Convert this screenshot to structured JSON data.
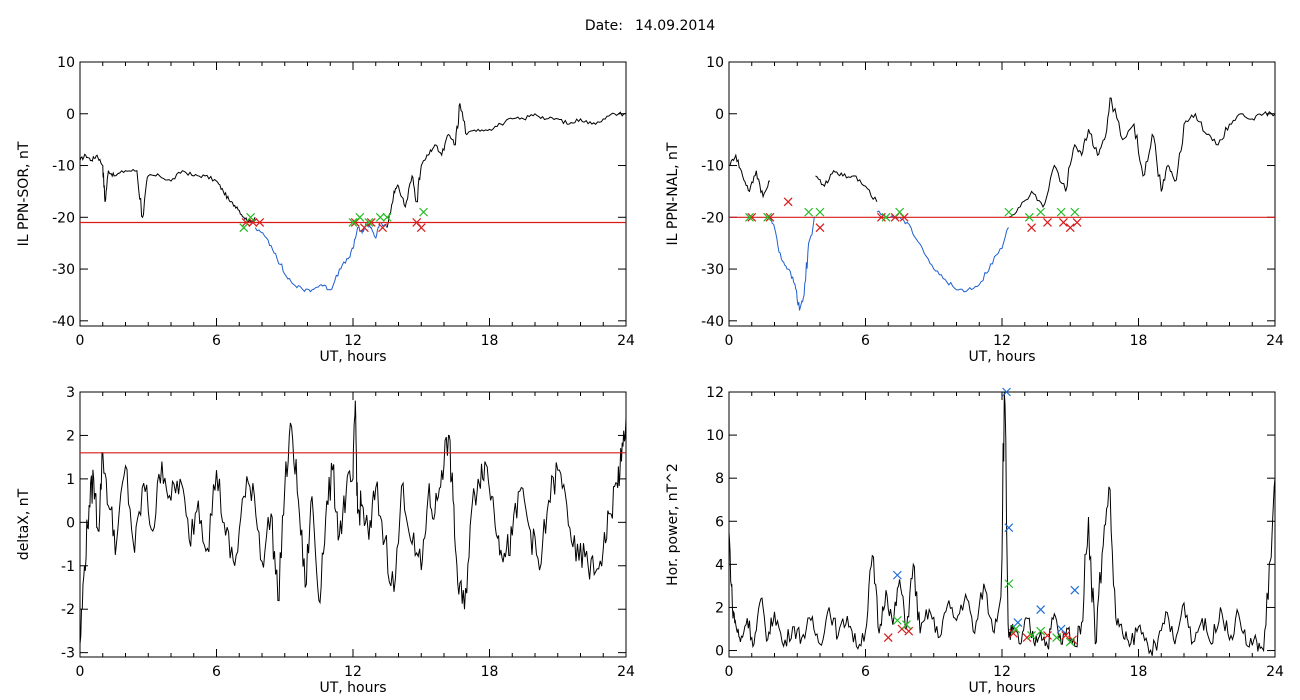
{
  "header": {
    "date_label": "Date:",
    "date_value": "14.09.2014"
  },
  "chart_data": [
    {
      "id": "sor",
      "type": "line",
      "xlabel": "UT, hours",
      "ylabel": "IL PPN-SOR, nT",
      "xlim": [
        0,
        24
      ],
      "ylim": [
        -41,
        10
      ],
      "xticks": [
        0,
        6,
        12,
        18,
        24
      ],
      "yticks": [
        10,
        0,
        -10,
        -20,
        -30,
        -40
      ],
      "threshold": -21,
      "colors": {
        "line": "#000000",
        "highlight": "#1f5fd0",
        "threshold": "#d81b1b",
        "red_marker": "#d81b1b",
        "green_marker": "#22bb22"
      },
      "series": [
        {
          "x": [
            0.0,
            0.25,
            0.5,
            0.75,
            1.0,
            1.1,
            1.25,
            1.5,
            2.0,
            2.5,
            2.75,
            3.0,
            3.5,
            4.0,
            4.5,
            5.0,
            5.5,
            6.0,
            6.3,
            6.6,
            6.9,
            7.2,
            7.5,
            7.7
          ],
          "y": [
            -9,
            -8,
            -9,
            -8,
            -10,
            -17,
            -11,
            -12,
            -11,
            -11,
            -20,
            -12,
            -12,
            -13,
            -11,
            -12,
            -12,
            -13,
            -15,
            -17,
            -18,
            -20,
            -21,
            -20
          ]
        },
        {
          "x": [
            7.7,
            8.2,
            8.6,
            9.0,
            9.4,
            9.8,
            10.2,
            10.6,
            11.0,
            11.4,
            11.8,
            12.0,
            12.2,
            12.4,
            12.6,
            12.8,
            13.0,
            13.2,
            13.5
          ],
          "y": [
            -22,
            -24,
            -27,
            -31,
            -33,
            -34,
            -34,
            -33,
            -34,
            -30,
            -28,
            -26,
            -22,
            -23,
            -21,
            -22,
            -24,
            -21,
            -22
          ]
        },
        {
          "x": [
            13.5,
            13.8,
            14.0,
            14.3,
            14.6,
            14.8,
            15.0,
            15.3,
            15.6,
            15.9,
            16.2,
            16.5,
            16.7,
            17.0,
            17.5,
            18.0,
            18.5,
            19.0,
            19.5,
            20.0,
            20.5,
            21.0,
            21.5,
            22.0,
            22.5,
            23.0,
            23.5,
            24.0
          ],
          "y": [
            -22,
            -15,
            -14,
            -18,
            -12,
            -17,
            -10,
            -8,
            -6,
            -8,
            -4,
            -6,
            2,
            -4,
            -3,
            -3,
            -2,
            -1,
            -1,
            0,
            -1,
            -1,
            -2,
            -1,
            -2,
            -1,
            0,
            0
          ]
        }
      ],
      "highlight_segments": [
        1
      ],
      "markers": {
        "red": {
          "x": [
            7.3,
            7.6,
            7.9,
            12.1,
            12.5,
            12.8,
            13.3,
            14.8,
            15.0
          ],
          "y": [
            -21,
            -21,
            -21,
            -21,
            -22,
            -21,
            -22,
            -21,
            -22
          ]
        },
        "green": {
          "x": [
            7.2,
            7.5,
            12.0,
            12.3,
            12.7,
            13.2,
            13.5,
            15.1
          ],
          "y": [
            -22,
            -20,
            -21,
            -20,
            -21,
            -20,
            -20,
            -19
          ]
        }
      }
    },
    {
      "id": "nal",
      "type": "line",
      "xlabel": "UT, hours",
      "ylabel": "IL PPN-NAL, nT",
      "xlim": [
        0,
        24
      ],
      "ylim": [
        -41,
        10
      ],
      "xticks": [
        0,
        6,
        12,
        18,
        24
      ],
      "yticks": [
        10,
        0,
        -10,
        -20,
        -30,
        -40
      ],
      "threshold": -20,
      "colors": {
        "line": "#000000",
        "highlight": "#1f5fd0",
        "threshold": "#d81b1b",
        "red_marker": "#d81b1b",
        "green_marker": "#22bb22"
      },
      "series": [
        {
          "x": [
            0.0,
            0.3,
            0.6,
            0.9,
            1.2,
            1.5,
            1.8
          ],
          "y": [
            -10,
            -8,
            -12,
            -15,
            -11,
            -16,
            -13
          ]
        },
        {
          "x": [
            1.8,
            2.0,
            2.3,
            2.6,
            2.9,
            3.1,
            3.3,
            3.5,
            3.8
          ],
          "y": [
            -20,
            -22,
            -28,
            -30,
            -33,
            -38,
            -35,
            -25,
            -20
          ]
        },
        {
          "x": [
            3.8,
            4.2,
            4.6,
            5.0,
            5.5,
            6.0,
            6.5
          ],
          "y": [
            -12,
            -14,
            -11,
            -12,
            -12,
            -14,
            -17
          ]
        },
        {
          "x": [
            6.5,
            7.0,
            7.5,
            8.0,
            8.5,
            9.0,
            9.5,
            10.0,
            10.5,
            11.0,
            11.5,
            12.0,
            12.3
          ],
          "y": [
            -19,
            -20,
            -20,
            -22,
            -26,
            -30,
            -32,
            -34,
            -34,
            -33,
            -29,
            -26,
            -22
          ]
        },
        {
          "x": [
            12.3,
            12.8,
            13.3,
            13.8,
            14.3,
            14.8,
            15.2,
            15.5,
            15.8,
            16.2,
            16.5,
            16.8,
            17.3,
            17.8,
            18.2,
            18.6,
            19.0,
            19.3,
            19.6,
            20.0,
            20.5,
            21.0,
            21.5,
            22.0,
            22.5,
            23.0,
            23.5,
            24.0
          ],
          "y": [
            -20,
            -18,
            -15,
            -18,
            -10,
            -15,
            -6,
            -8,
            -3,
            -8,
            -5,
            3,
            -5,
            -2,
            -12,
            -4,
            -15,
            -10,
            -13,
            -2,
            0,
            -4,
            -6,
            -2,
            0,
            -1,
            0,
            0
          ]
        }
      ],
      "highlight_segments": [
        1,
        3
      ],
      "markers": {
        "red": {
          "x": [
            1.0,
            1.8,
            2.6,
            4.0,
            6.7,
            7.3,
            7.7,
            13.3,
            14.0,
            14.7,
            15.0,
            15.3
          ],
          "y": [
            -20,
            -20,
            -17,
            -22,
            -20,
            -20,
            -20,
            -22,
            -21,
            -21,
            -22,
            -21
          ]
        },
        "green": {
          "x": [
            0.9,
            1.7,
            3.5,
            4.0,
            6.9,
            7.5,
            12.3,
            13.2,
            13.7,
            14.6,
            15.2
          ],
          "y": [
            -20,
            -20,
            -19,
            -19,
            -20,
            -19,
            -19,
            -20,
            -19,
            -19,
            -19
          ]
        }
      }
    },
    {
      "id": "deltax",
      "type": "line",
      "xlabel": "UT, hours",
      "ylabel": "deltaX, nT",
      "xlim": [
        0,
        24
      ],
      "ylim": [
        -3.1,
        3.0
      ],
      "xticks": [
        0,
        6,
        12,
        18,
        24
      ],
      "yticks": [
        3,
        2,
        1,
        0,
        -1,
        -2,
        -3
      ],
      "threshold": 1.6,
      "colors": {
        "line": "#000000",
        "threshold": "#d81b1b"
      },
      "series": [
        {
          "x": [
            0.0,
            0.2,
            0.4,
            0.6,
            0.8,
            1.0,
            1.3,
            1.6,
            2.0,
            2.4,
            2.8,
            3.2,
            3.6,
            4.0,
            4.4,
            4.8,
            5.2,
            5.6,
            6.0,
            6.4,
            6.8,
            7.2,
            7.6,
            8.0,
            8.4,
            8.7,
            9.0,
            9.3,
            9.6,
            9.9,
            10.2,
            10.5,
            10.8,
            11.1,
            11.4,
            11.7,
            12.0,
            12.1,
            12.2,
            12.4,
            12.7,
            13.0,
            13.4,
            13.8,
            14.2,
            14.6,
            15.0,
            15.3,
            15.6,
            15.9,
            16.2,
            16.4,
            16.6,
            16.9,
            17.2,
            17.5,
            17.8,
            18.1,
            18.4,
            18.7,
            19.0,
            19.4,
            19.8,
            20.2,
            20.6,
            21.0,
            21.4,
            21.8,
            22.2,
            22.6,
            23.0,
            23.3,
            23.6,
            23.8,
            24.0
          ],
          "y": [
            -2.8,
            -1.0,
            0.4,
            1.0,
            -0.2,
            1.6,
            0.3,
            -0.5,
            1.3,
            -0.7,
            0.9,
            -0.2,
            1.4,
            0.5,
            1.0,
            -0.4,
            0.5,
            -0.6,
            1.2,
            -0.3,
            -1.0,
            0.6,
            0.9,
            -0.9,
            0.2,
            -1.8,
            0.8,
            2.2,
            0.5,
            -1.5,
            0.6,
            -1.8,
            0.1,
            1.2,
            -0.3,
            0.7,
            1.0,
            2.8,
            0.2,
            0.4,
            -0.4,
            0.8,
            -0.4,
            -1.6,
            0.9,
            -0.5,
            -1.1,
            0.6,
            0.2,
            1.2,
            2.0,
            0.5,
            -1.4,
            -2.0,
            0.2,
            1.0,
            1.4,
            0.6,
            -0.3,
            -0.8,
            -0.3,
            0.8,
            -0.2,
            -1.1,
            0.5,
            1.2,
            0.4,
            -0.9,
            -0.8,
            -1.2,
            -0.6,
            0.2,
            0.9,
            1.4,
            2.4
          ]
        }
      ]
    },
    {
      "id": "power",
      "type": "line",
      "xlabel": "UT, hours",
      "ylabel": "Hor. power, nT^2",
      "xlim": [
        0,
        24
      ],
      "ylim": [
        -0.3,
        12
      ],
      "xticks": [
        0,
        6,
        12,
        18,
        24
      ],
      "yticks": [
        12,
        10,
        8,
        6,
        4,
        2,
        0
      ],
      "colors": {
        "line": "#000000",
        "red_marker": "#d81b1b",
        "green_marker": "#22bb22",
        "blue_marker": "#1f6fd6"
      },
      "series": [
        {
          "x": [
            0.0,
            0.15,
            0.3,
            0.5,
            0.8,
            1.1,
            1.4,
            1.7,
            2.0,
            2.4,
            2.8,
            3.2,
            3.6,
            4.0,
            4.4,
            4.8,
            5.2,
            5.6,
            6.0,
            6.3,
            6.6,
            6.9,
            7.2,
            7.5,
            7.8,
            8.1,
            8.4,
            8.8,
            9.2,
            9.6,
            10.0,
            10.4,
            10.8,
            11.2,
            11.6,
            11.95,
            12.1,
            12.3,
            12.5,
            12.8,
            13.1,
            13.4,
            13.7,
            14.0,
            14.3,
            14.6,
            14.9,
            15.2,
            15.5,
            15.8,
            16.1,
            16.4,
            16.7,
            17.0,
            17.3,
            17.6,
            18.0,
            18.4,
            18.8,
            19.2,
            19.6,
            20.0,
            20.4,
            20.8,
            21.2,
            21.6,
            22.0,
            22.4,
            22.8,
            23.2,
            23.5,
            23.8,
            24.0
          ],
          "y": [
            5.5,
            2.0,
            1.2,
            0.4,
            1.5,
            0.3,
            2.4,
            0.5,
            1.8,
            0.2,
            1.1,
            0.6,
            1.4,
            0.3,
            2.0,
            0.7,
            1.6,
            0.2,
            0.9,
            4.4,
            0.8,
            2.8,
            1.2,
            3.3,
            1.0,
            4.0,
            0.8,
            1.9,
            0.6,
            2.1,
            1.4,
            2.6,
            0.8,
            3.1,
            0.9,
            2.5,
            12.0,
            0.6,
            1.0,
            0.3,
            1.5,
            0.4,
            0.9,
            0.2,
            1.7,
            0.3,
            1.0,
            0.2,
            1.3,
            6.2,
            0.3,
            4.5,
            7.6,
            1.5,
            0.8,
            0.2,
            1.1,
            0.3,
            0.0,
            1.8,
            0.3,
            2.2,
            0.4,
            1.5,
            0.3,
            2.0,
            0.5,
            1.7,
            0.2,
            0.4,
            0.0,
            4.2,
            8.0
          ]
        }
      ],
      "markers": {
        "red": {
          "x": [
            7.0,
            7.6,
            7.9,
            12.5,
            13.1,
            14.0,
            14.8,
            15.1
          ],
          "y": [
            0.6,
            1.0,
            0.9,
            0.8,
            0.6,
            0.7,
            0.7,
            0.5
          ]
        },
        "green": {
          "x": [
            7.4,
            7.8,
            12.3,
            12.6,
            13.3,
            13.7,
            14.4,
            15.0
          ],
          "y": [
            1.4,
            1.2,
            3.1,
            1.0,
            0.7,
            0.9,
            0.6,
            0.4
          ]
        },
        "blue": {
          "x": [
            7.4,
            12.2,
            12.3,
            12.7,
            13.7,
            14.6,
            15.2
          ],
          "y": [
            3.5,
            12.0,
            5.7,
            1.3,
            1.9,
            1.0,
            2.8
          ]
        }
      }
    }
  ]
}
